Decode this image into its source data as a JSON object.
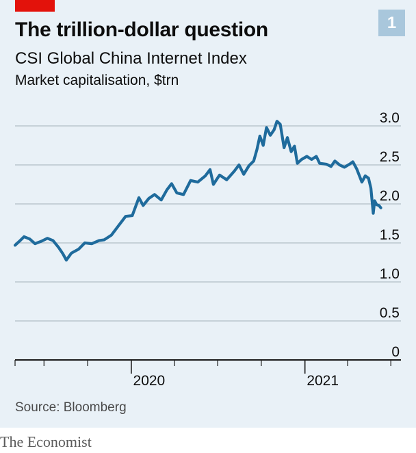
{
  "header": {
    "title": "The trillion-dollar question",
    "subtitle": "CSI Global China Internet Index",
    "unit_label": "Market capitalisation, $trn",
    "badge": "1"
  },
  "footer": {
    "source": "Source: Bloomberg",
    "brand": "The Economist"
  },
  "colors": {
    "line": "#1f6b9c",
    "grid": "#b2bec6",
    "axis": "#1a1a1a",
    "panel_bg": "#e9f1f7",
    "accent_red": "#e3120b",
    "badge_bg": "#a9c7dc"
  },
  "chart_data": {
    "type": "line",
    "title": "The trillion-dollar question",
    "subtitle": "CSI Global China Internet Index",
    "ylabel": "Market capitalisation, $trn",
    "xlabel": "",
    "ylim": [
      0,
      3.0
    ],
    "xlim": [
      "2019-05-01",
      "2021-07-31"
    ],
    "y_ticks": [
      {
        "value": 0,
        "label": "0"
      },
      {
        "value": 0.5,
        "label": "0.5"
      },
      {
        "value": 1.0,
        "label": "1.0"
      },
      {
        "value": 1.5,
        "label": "1.5"
      },
      {
        "value": 2.0,
        "label": "2.0"
      },
      {
        "value": 2.5,
        "label": "2.5"
      },
      {
        "value": 3.0,
        "label": "3.0"
      }
    ],
    "x_tick_labels": [
      {
        "date": "2020-01-01",
        "label": "2020"
      },
      {
        "date": "2021-01-01",
        "label": "2021"
      }
    ],
    "x_month_ticks": [
      "2019-05-01",
      "2019-07-01",
      "2019-10-01",
      "2020-01-01",
      "2020-04-01",
      "2020-07-01",
      "2020-10-01",
      "2021-01-01",
      "2021-04-01",
      "2021-07-01"
    ],
    "grid": true,
    "legend": "none",
    "series": [
      {
        "points": [
          [
            "2019-05-01",
            1.47
          ],
          [
            "2019-05-10",
            1.52
          ],
          [
            "2019-05-20",
            1.58
          ],
          [
            "2019-06-01",
            1.55
          ],
          [
            "2019-06-12",
            1.49
          ],
          [
            "2019-06-25",
            1.52
          ],
          [
            "2019-07-08",
            1.56
          ],
          [
            "2019-07-20",
            1.53
          ],
          [
            "2019-08-01",
            1.44
          ],
          [
            "2019-08-10",
            1.36
          ],
          [
            "2019-08-17",
            1.28
          ],
          [
            "2019-08-28",
            1.37
          ],
          [
            "2019-09-12",
            1.42
          ],
          [
            "2019-09-25",
            1.5
          ],
          [
            "2019-10-10",
            1.49
          ],
          [
            "2019-10-25",
            1.53
          ],
          [
            "2019-11-05",
            1.54
          ],
          [
            "2019-11-20",
            1.6
          ],
          [
            "2019-12-05",
            1.72
          ],
          [
            "2019-12-20",
            1.84
          ],
          [
            "2020-01-03",
            1.85
          ],
          [
            "2020-01-17",
            2.08
          ],
          [
            "2020-01-26",
            1.98
          ],
          [
            "2020-02-07",
            2.07
          ],
          [
            "2020-02-19",
            2.12
          ],
          [
            "2020-03-04",
            2.05
          ],
          [
            "2020-03-16",
            2.18
          ],
          [
            "2020-03-26",
            2.26
          ],
          [
            "2020-04-06",
            2.14
          ],
          [
            "2020-04-20",
            2.12
          ],
          [
            "2020-05-05",
            2.3
          ],
          [
            "2020-05-20",
            2.28
          ],
          [
            "2020-06-05",
            2.36
          ],
          [
            "2020-06-15",
            2.44
          ],
          [
            "2020-06-22",
            2.25
          ],
          [
            "2020-07-05",
            2.37
          ],
          [
            "2020-07-20",
            2.31
          ],
          [
            "2020-08-05",
            2.42
          ],
          [
            "2020-08-15",
            2.5
          ],
          [
            "2020-08-25",
            2.38
          ],
          [
            "2020-09-05",
            2.49
          ],
          [
            "2020-09-15",
            2.55
          ],
          [
            "2020-09-22",
            2.7
          ],
          [
            "2020-09-28",
            2.87
          ],
          [
            "2020-10-05",
            2.75
          ],
          [
            "2020-10-12",
            2.98
          ],
          [
            "2020-10-20",
            2.88
          ],
          [
            "2020-10-28",
            2.95
          ],
          [
            "2020-11-03",
            3.06
          ],
          [
            "2020-11-10",
            3.02
          ],
          [
            "2020-11-18",
            2.72
          ],
          [
            "2020-11-25",
            2.85
          ],
          [
            "2020-12-03",
            2.67
          ],
          [
            "2020-12-10",
            2.74
          ],
          [
            "2020-12-16",
            2.52
          ],
          [
            "2020-12-25",
            2.57
          ],
          [
            "2021-01-05",
            2.61
          ],
          [
            "2021-01-15",
            2.57
          ],
          [
            "2021-01-25",
            2.61
          ],
          [
            "2021-02-01",
            2.52
          ],
          [
            "2021-02-15",
            2.51
          ],
          [
            "2021-02-25",
            2.48
          ],
          [
            "2021-03-05",
            2.55
          ],
          [
            "2021-03-15",
            2.5
          ],
          [
            "2021-03-25",
            2.47
          ],
          [
            "2021-04-05",
            2.51
          ],
          [
            "2021-04-12",
            2.54
          ],
          [
            "2021-04-20",
            2.45
          ],
          [
            "2021-05-01",
            2.28
          ],
          [
            "2021-05-08",
            2.36
          ],
          [
            "2021-05-15",
            2.33
          ],
          [
            "2021-05-20",
            2.2
          ],
          [
            "2021-05-25",
            1.88
          ],
          [
            "2021-05-28",
            2.04
          ],
          [
            "2021-06-01",
            1.99
          ],
          [
            "2021-06-06",
            1.98
          ],
          [
            "2021-06-10",
            1.95
          ]
        ]
      }
    ]
  }
}
